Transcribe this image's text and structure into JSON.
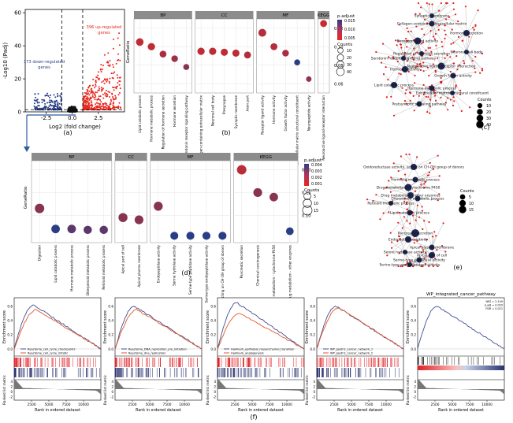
{
  "panel_letters": [
    "(a)",
    "(b)",
    "(c)",
    "(d)",
    "(e)",
    "(f)"
  ],
  "colors": {
    "up": "#e8271e",
    "down": "#2a3e85",
    "ns": "#111111",
    "strip": "#8c8c8c",
    "grid": "#e6e6e6",
    "node_term": "#1d2550",
    "node_gene": "#e11d1d",
    "edge": "#8a8a8a",
    "gsea_blue": "#3f4f92",
    "gsea_red": "#e4572e",
    "hit_red": "#e21f26",
    "hit_blue": "#27316e"
  },
  "chart_data": [
    {
      "id": "a",
      "type": "scatter",
      "title": "",
      "xlabel": "Log2 (fold change)",
      "ylabel": "-Log10 (Padj)",
      "xlim": [
        -4.5,
        5.0
      ],
      "ylim": [
        0,
        62
      ],
      "xticks": [
        -2.5,
        0.0,
        2.5
      ],
      "xtick_labels": [
        "-2.5",
        "0.0",
        "2.5"
      ],
      "yticks": [
        0,
        20,
        40,
        60
      ],
      "ytick_labels": [
        "0",
        "20",
        "40",
        "60"
      ],
      "thresholds": {
        "x": [
          -1,
          1
        ],
        "y": 1.3
      },
      "annotations": [
        {
          "text": "396 up-regulated genes",
          "lines": [
            "396 up-regulated",
            "genes"
          ],
          "color": "#e8271e"
        },
        {
          "text": "173 down-regulated genes",
          "lines": [
            "173 down-regulated",
            "genes"
          ],
          "color": "#2a3e85"
        }
      ],
      "series": [
        {
          "name": "up",
          "count": 396
        },
        {
          "name": "down",
          "count": 173
        },
        {
          "name": "not significant"
        }
      ]
    },
    {
      "id": "b",
      "type": "scatter",
      "title": "",
      "ylabel": "GeneRatio",
      "facets": [
        {
          "name": "BP",
          "categories": [
            "Lipid catabolic process",
            "Hormone metabolic process",
            "Regulation of hormone secretion",
            "Hormone secretion",
            "Serotonin receptor signaling pathway"
          ],
          "values": [
            0.105,
            0.1,
            0.092,
            0.087,
            0.078
          ],
          "padj": [
            0.004,
            0.004,
            0.006,
            0.007,
            0.009
          ],
          "counts": [
            40,
            36,
            28,
            25,
            18
          ]
        },
        {
          "name": "CC",
          "categories": [
            "Collagen-containing extracellular matrix",
            "Neuronal cell body",
            "Presynapse",
            "Synaptic membrane",
            "Axon part"
          ],
          "values": [
            0.095,
            0.095,
            0.094,
            0.093,
            0.091
          ],
          "padj": [
            0.004,
            0.004,
            0.004,
            0.004,
            0.005
          ],
          "counts": [
            35,
            34,
            33,
            33,
            30
          ]
        },
        {
          "name": "MF",
          "categories": [
            "Receptor ligand activity",
            "Hormone activity",
            "Growth factor activity",
            "Extracellular matrix structural constituent",
            "Neuropeptide activity"
          ],
          "values": [
            0.115,
            0.1,
            0.093,
            0.083,
            0.065
          ],
          "padj": [
            0.005,
            0.005,
            0.006,
            0.018,
            0.008
          ],
          "counts": [
            45,
            30,
            26,
            18,
            12
          ]
        },
        {
          "name": "KEGG",
          "categories": [
            "Neuroactive ligand-receptor interaction"
          ],
          "values": [
            0.125
          ],
          "padj": [
            0.003
          ],
          "counts": [
            30
          ]
        }
      ],
      "yticks": [
        0.06,
        0.08,
        0.1,
        0.12
      ],
      "ytick_labels": [
        "0.06",
        "0.08",
        "0.10",
        "0.12"
      ],
      "ylim": [
        0.05,
        0.13
      ],
      "legend": {
        "title": "p.adjust",
        "ticks": [
          "0.015",
          "0.010",
          "0.005"
        ],
        "size_title": "Counts",
        "size_ticks": [
          10,
          20,
          30,
          40
        ]
      }
    },
    {
      "id": "c",
      "type": "network",
      "term_labels": [
        "Collagen-containing extracellular matrix",
        "Receptor ligand activity",
        "Hormone secretion",
        "Regulation of hormone secretion",
        "Neuroactive ligand-receptor interaction",
        "Hormone activity",
        "Growth factor activity",
        "Lipid catabolic process",
        "Hormone metabolic process",
        "Neuronal cell body",
        "Postsynaptic signaling pathway",
        "Extracellular matrix structural constituent",
        "Serotonin receptor signaling pathway",
        "Synaptic membrane"
      ],
      "legend": {
        "title": "Counts",
        "ticks": [
          10,
          20,
          30,
          40
        ]
      }
    },
    {
      "id": "d",
      "type": "scatter",
      "title": "",
      "ylabel": "GeneRatio",
      "facets": [
        {
          "name": "BP",
          "categories": [
            "Digestion",
            "Lipid catabolic process",
            "Hormone metabolic process",
            "Diterpenoid metabolic process",
            "Retinoid metabolic process"
          ],
          "values": [
            0.115,
            0.07,
            0.07,
            0.068,
            0.068
          ],
          "padj": [
            0.002,
            0.004,
            0.003,
            0.003,
            0.003
          ],
          "counts": [
            14,
            10,
            10,
            9,
            9
          ]
        },
        {
          "name": "CC",
          "categories": [
            "Apical part of cell",
            "Apical plasma membrane"
          ],
          "values": [
            0.095,
            0.09
          ],
          "padj": [
            0.002,
            0.002
          ],
          "counts": [
            12,
            11
          ]
        },
        {
          "name": "MF",
          "categories": [
            "Endopeptidase activity",
            "Serine hydrolase activity",
            "Serine-type peptidase activity",
            "Serine-type endopeptidase activity",
            "Oxidoreductase activity, acting on CH-OH group of donors"
          ],
          "values": [
            0.12,
            0.055,
            0.055,
            0.055,
            0.055
          ],
          "padj": [
            0.002,
            0.004,
            0.004,
            0.004,
            0.004
          ],
          "counts": [
            12,
            8,
            8,
            8,
            8
          ]
        },
        {
          "name": "KEGG",
          "categories": [
            "Pancreatic secretion",
            "Chemical carcinogenesis",
            "Drug metabolism - cytochrome P450",
            "Drug metabolism - other enzymes"
          ],
          "values": [
            0.2,
            0.15,
            0.14,
            0.065
          ],
          "padj": [
            0.001,
            0.002,
            0.002,
            0.004
          ],
          "counts": [
            14,
            11,
            10,
            7
          ]
        }
      ],
      "yticks": [
        0.1,
        0.15,
        0.2
      ],
      "ytick_labels": [
        "0.10",
        "0.15",
        "0.20"
      ],
      "ylim": [
        0.04,
        0.22
      ],
      "legend": {
        "title": "p.adjust",
        "ticks": [
          "0.004",
          "0.003",
          "0.002",
          "0.001"
        ],
        "size_title": "Counts",
        "size_ticks": [
          5,
          10,
          15
        ]
      }
    },
    {
      "id": "e",
      "type": "network",
      "term_labels": [
        "Oxidoreductase activity, acting on CH-OH group of donors",
        "Hormone metabolic process",
        "Drug metabolism - cytochrome P450",
        "Drug metabolism - other enzymes",
        "Diterpenoid metabolic process",
        "Retinoid metabolic process",
        "Lipid catabolic process",
        "Pancreatic secretion",
        "Endopeptidase activity",
        "Apical plasma membrane",
        "Serine hydrolase activity",
        "Apical part of cell",
        "Serine-type peptidase activity",
        "Serine-type endopeptidase activity"
      ],
      "legend": {
        "title": "Counts",
        "ticks": [
          5,
          10,
          15
        ]
      }
    },
    {
      "id": "f",
      "type": "line",
      "xlabel": "Rank in ordered dataset",
      "ylabel_top": "Enrichment score",
      "ylabel_bottom": "Ranked list metric",
      "xticks": [
        2500,
        5000,
        7500,
        10000
      ],
      "xtick_labels": [
        "2500",
        "5000",
        "7500",
        "10000"
      ],
      "xlim": [
        0,
        12500
      ],
      "metric_ticks": [
        "4",
        "2",
        "0",
        "-2"
      ],
      "plots": [
        {
          "title": "",
          "legend": [
            "Reactome_cell_cycle_checkpoints",
            "Reactome_cell_cycle_mitotic"
          ],
          "peaks": [
            0.62,
            0.55
          ],
          "es_ticks": [
            "0.6",
            "0.4",
            "0.2",
            "0.0"
          ]
        },
        {
          "title": "",
          "legend": [
            "Reactome_DNA_replication_pre_initiation",
            "Reactome_dna_replication"
          ],
          "peaks": [
            0.6,
            0.55
          ],
          "es_ticks": [
            "0.6",
            "0.4",
            "0.2",
            "0.0"
          ]
        },
        {
          "title": "",
          "legend": [
            "Hallmark_epithelial_mesenchymal_transition",
            "Hallmark_angiogenesis"
          ],
          "peaks": [
            0.65,
            0.5
          ],
          "es_ticks": [
            "0.6",
            "0.4",
            "0.2",
            "0.0"
          ]
        },
        {
          "title": "",
          "legend": [
            "WP_gastric_cancer_network_1",
            "WP_gastric_cancer_network_2"
          ],
          "peaks": [
            0.6,
            0.58
          ],
          "es_ticks": [
            "0.6",
            "0.4",
            "0.2",
            "0.0"
          ]
        },
        {
          "title": "WP_integrated_cancer_pathway",
          "legend": [],
          "peaks": [
            0.6
          ],
          "stats": [
            "NES = 2.149",
            "p.adj = 0.029",
            "FDR = 0.021"
          ],
          "es_ticks": [
            "0.6",
            "0.4",
            "0.2",
            "0.0"
          ]
        }
      ]
    }
  ]
}
